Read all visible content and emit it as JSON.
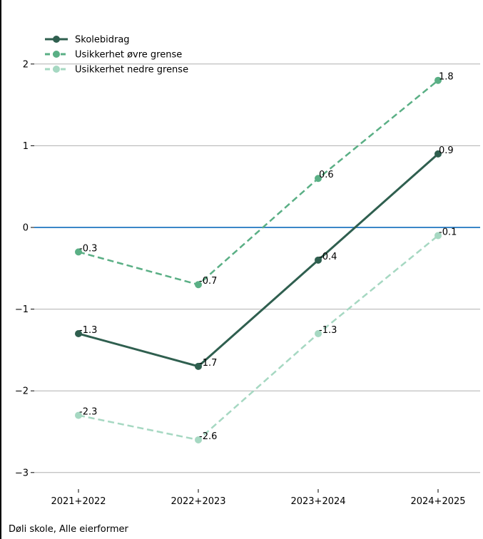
{
  "chart_data": {
    "type": "line",
    "categories": [
      "2021+2022",
      "2022+2023",
      "2023+2024",
      "2024+2025"
    ],
    "series": [
      {
        "name": "Skolebidrag",
        "values": [
          -1.3,
          -1.7,
          -0.4,
          0.9
        ],
        "color": "#2f5f4f",
        "style": "solid"
      },
      {
        "name": "Usikkerhet øvre grense",
        "values": [
          -0.3,
          -0.7,
          0.6,
          1.8
        ],
        "color": "#5aaf85",
        "style": "dashed"
      },
      {
        "name": "Usikkerhet nedre grense",
        "values": [
          -2.3,
          -2.6,
          -1.3,
          -0.1
        ],
        "color": "#a6d8c2",
        "style": "dashed"
      }
    ],
    "value_labels": [
      [
        "-1.3",
        "-1.7",
        "-0.4",
        "0.9"
      ],
      [
        "-0.3",
        "-0.7",
        "0.6",
        "1.8"
      ],
      [
        "-2.3",
        "-2.6",
        "-1.3",
        "-0.1"
      ]
    ],
    "yticks": [
      -3,
      -2,
      -1,
      0,
      1,
      2
    ],
    "ytick_labels": [
      "−3",
      "−2",
      "−1",
      "0",
      "1",
      "2"
    ],
    "ylim": [
      -3.1,
      2.5
    ],
    "reference_line": {
      "y": 0,
      "color": "#3a87c8"
    },
    "grid": "horizontal",
    "legend_position": "top-left"
  },
  "footnote": "Døli skole, Alle eierformer"
}
